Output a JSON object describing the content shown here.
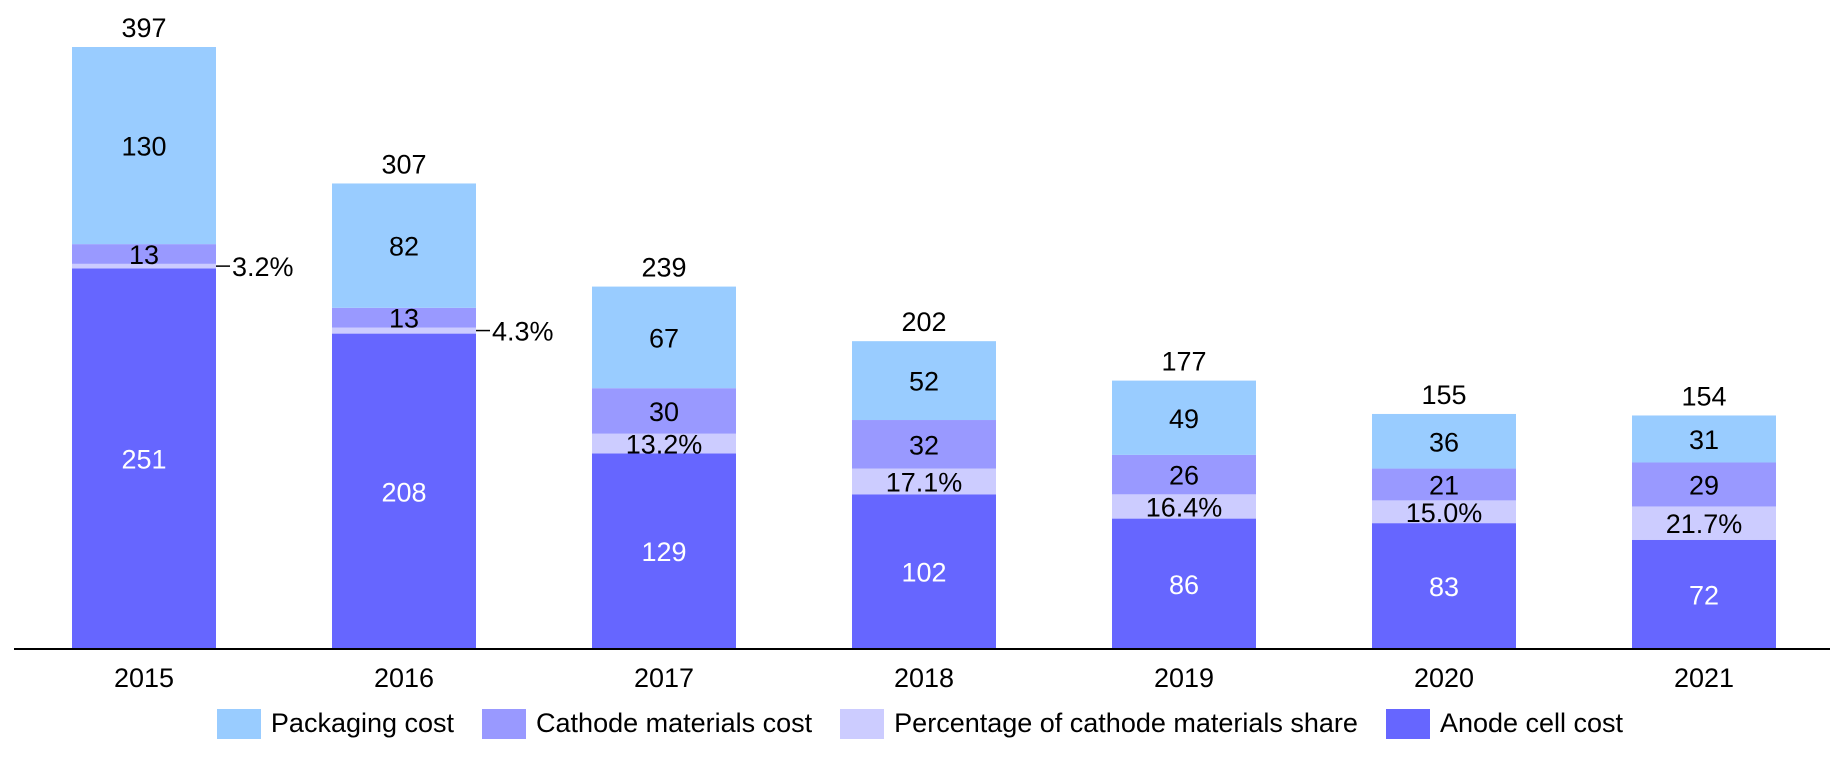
{
  "chart_data": {
    "type": "bar",
    "stacked": true,
    "categories": [
      "2015",
      "2016",
      "2017",
      "2018",
      "2019",
      "2020",
      "2021"
    ],
    "totals": [
      397,
      307,
      239,
      202,
      177,
      155,
      154
    ],
    "series": [
      {
        "name": "Anode cell cost",
        "color": "#6666ff",
        "values": [
          251,
          208,
          129,
          102,
          86,
          83,
          72
        ]
      },
      {
        "name": "Percentage of cathode materials share",
        "color": "#ccccff",
        "values": [
          3,
          4,
          13,
          17,
          16,
          15,
          22
        ],
        "labels": [
          "3.2%",
          "4.3%",
          "13.2%",
          "17.1%",
          "16.4%",
          "15.0%",
          "21.7%"
        ]
      },
      {
        "name": "Cathode materials cost",
        "color": "#9999ff",
        "values": [
          13,
          13,
          30,
          32,
          26,
          21,
          29
        ]
      },
      {
        "name": "Packaging cost",
        "color": "#99ccff",
        "values": [
          130,
          82,
          67,
          52,
          49,
          36,
          31
        ]
      }
    ],
    "legend": [
      "Packaging cost",
      "Cathode materials cost",
      "Percentage of cathode materials share",
      "Anode cell cost"
    ],
    "legend_position": "bottom",
    "ylim": [
      0,
      397
    ],
    "grid": false
  }
}
